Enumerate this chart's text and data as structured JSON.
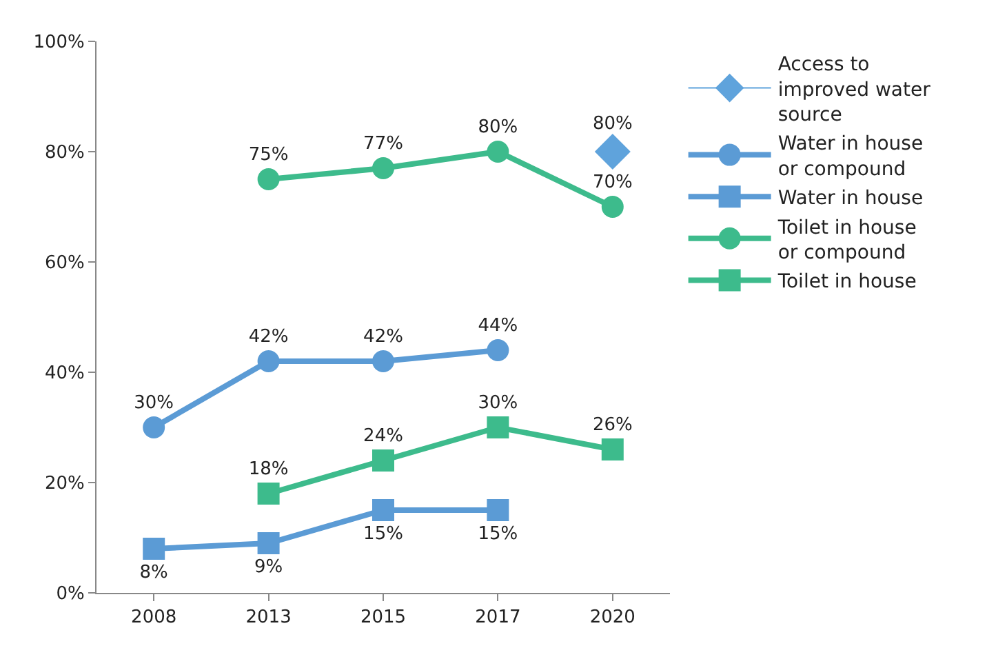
{
  "chart_data": {
    "type": "line",
    "categories": [
      "2008",
      "2013",
      "2015",
      "2017",
      "2020"
    ],
    "series": [
      {
        "name": "Access to improved water source",
        "color": "#5fa3dc",
        "marker": "diamond",
        "values": [
          null,
          null,
          null,
          null,
          80
        ],
        "value_labels": [
          null,
          null,
          null,
          null,
          "80%"
        ]
      },
      {
        "name": "Water in house or compound",
        "color": "#5b9bd5",
        "marker": "circle",
        "values": [
          30,
          42,
          42,
          44,
          null
        ],
        "value_labels": [
          "30%",
          "42%",
          "42%",
          "44%",
          null
        ]
      },
      {
        "name": "Water in house",
        "color": "#5b9bd5",
        "marker": "square",
        "values": [
          8,
          9,
          15,
          15,
          null
        ],
        "value_labels": [
          "8%",
          "9%",
          "15%",
          "15%",
          null
        ]
      },
      {
        "name": "Toilet in house or compound",
        "color": "#3dbb8c",
        "marker": "circle",
        "values": [
          null,
          75,
          77,
          80,
          70
        ],
        "value_labels": [
          null,
          "75%",
          "77%",
          "80%",
          "70%"
        ]
      },
      {
        "name": "Toilet in house",
        "color": "#3dbb8c",
        "marker": "square",
        "values": [
          null,
          18,
          24,
          30,
          26
        ],
        "value_labels": [
          null,
          "18%",
          "24%",
          "30%",
          "26%"
        ]
      }
    ],
    "ylim": [
      0,
      100
    ],
    "yticks": [
      {
        "value": 0,
        "label": "0%"
      },
      {
        "value": 20,
        "label": "20%"
      },
      {
        "value": 40,
        "label": "40%"
      },
      {
        "value": 60,
        "label": "60%"
      },
      {
        "value": 80,
        "label": "80%"
      },
      {
        "value": 100,
        "label": "100%"
      }
    ],
    "legend": "right",
    "line_style": "solid"
  }
}
